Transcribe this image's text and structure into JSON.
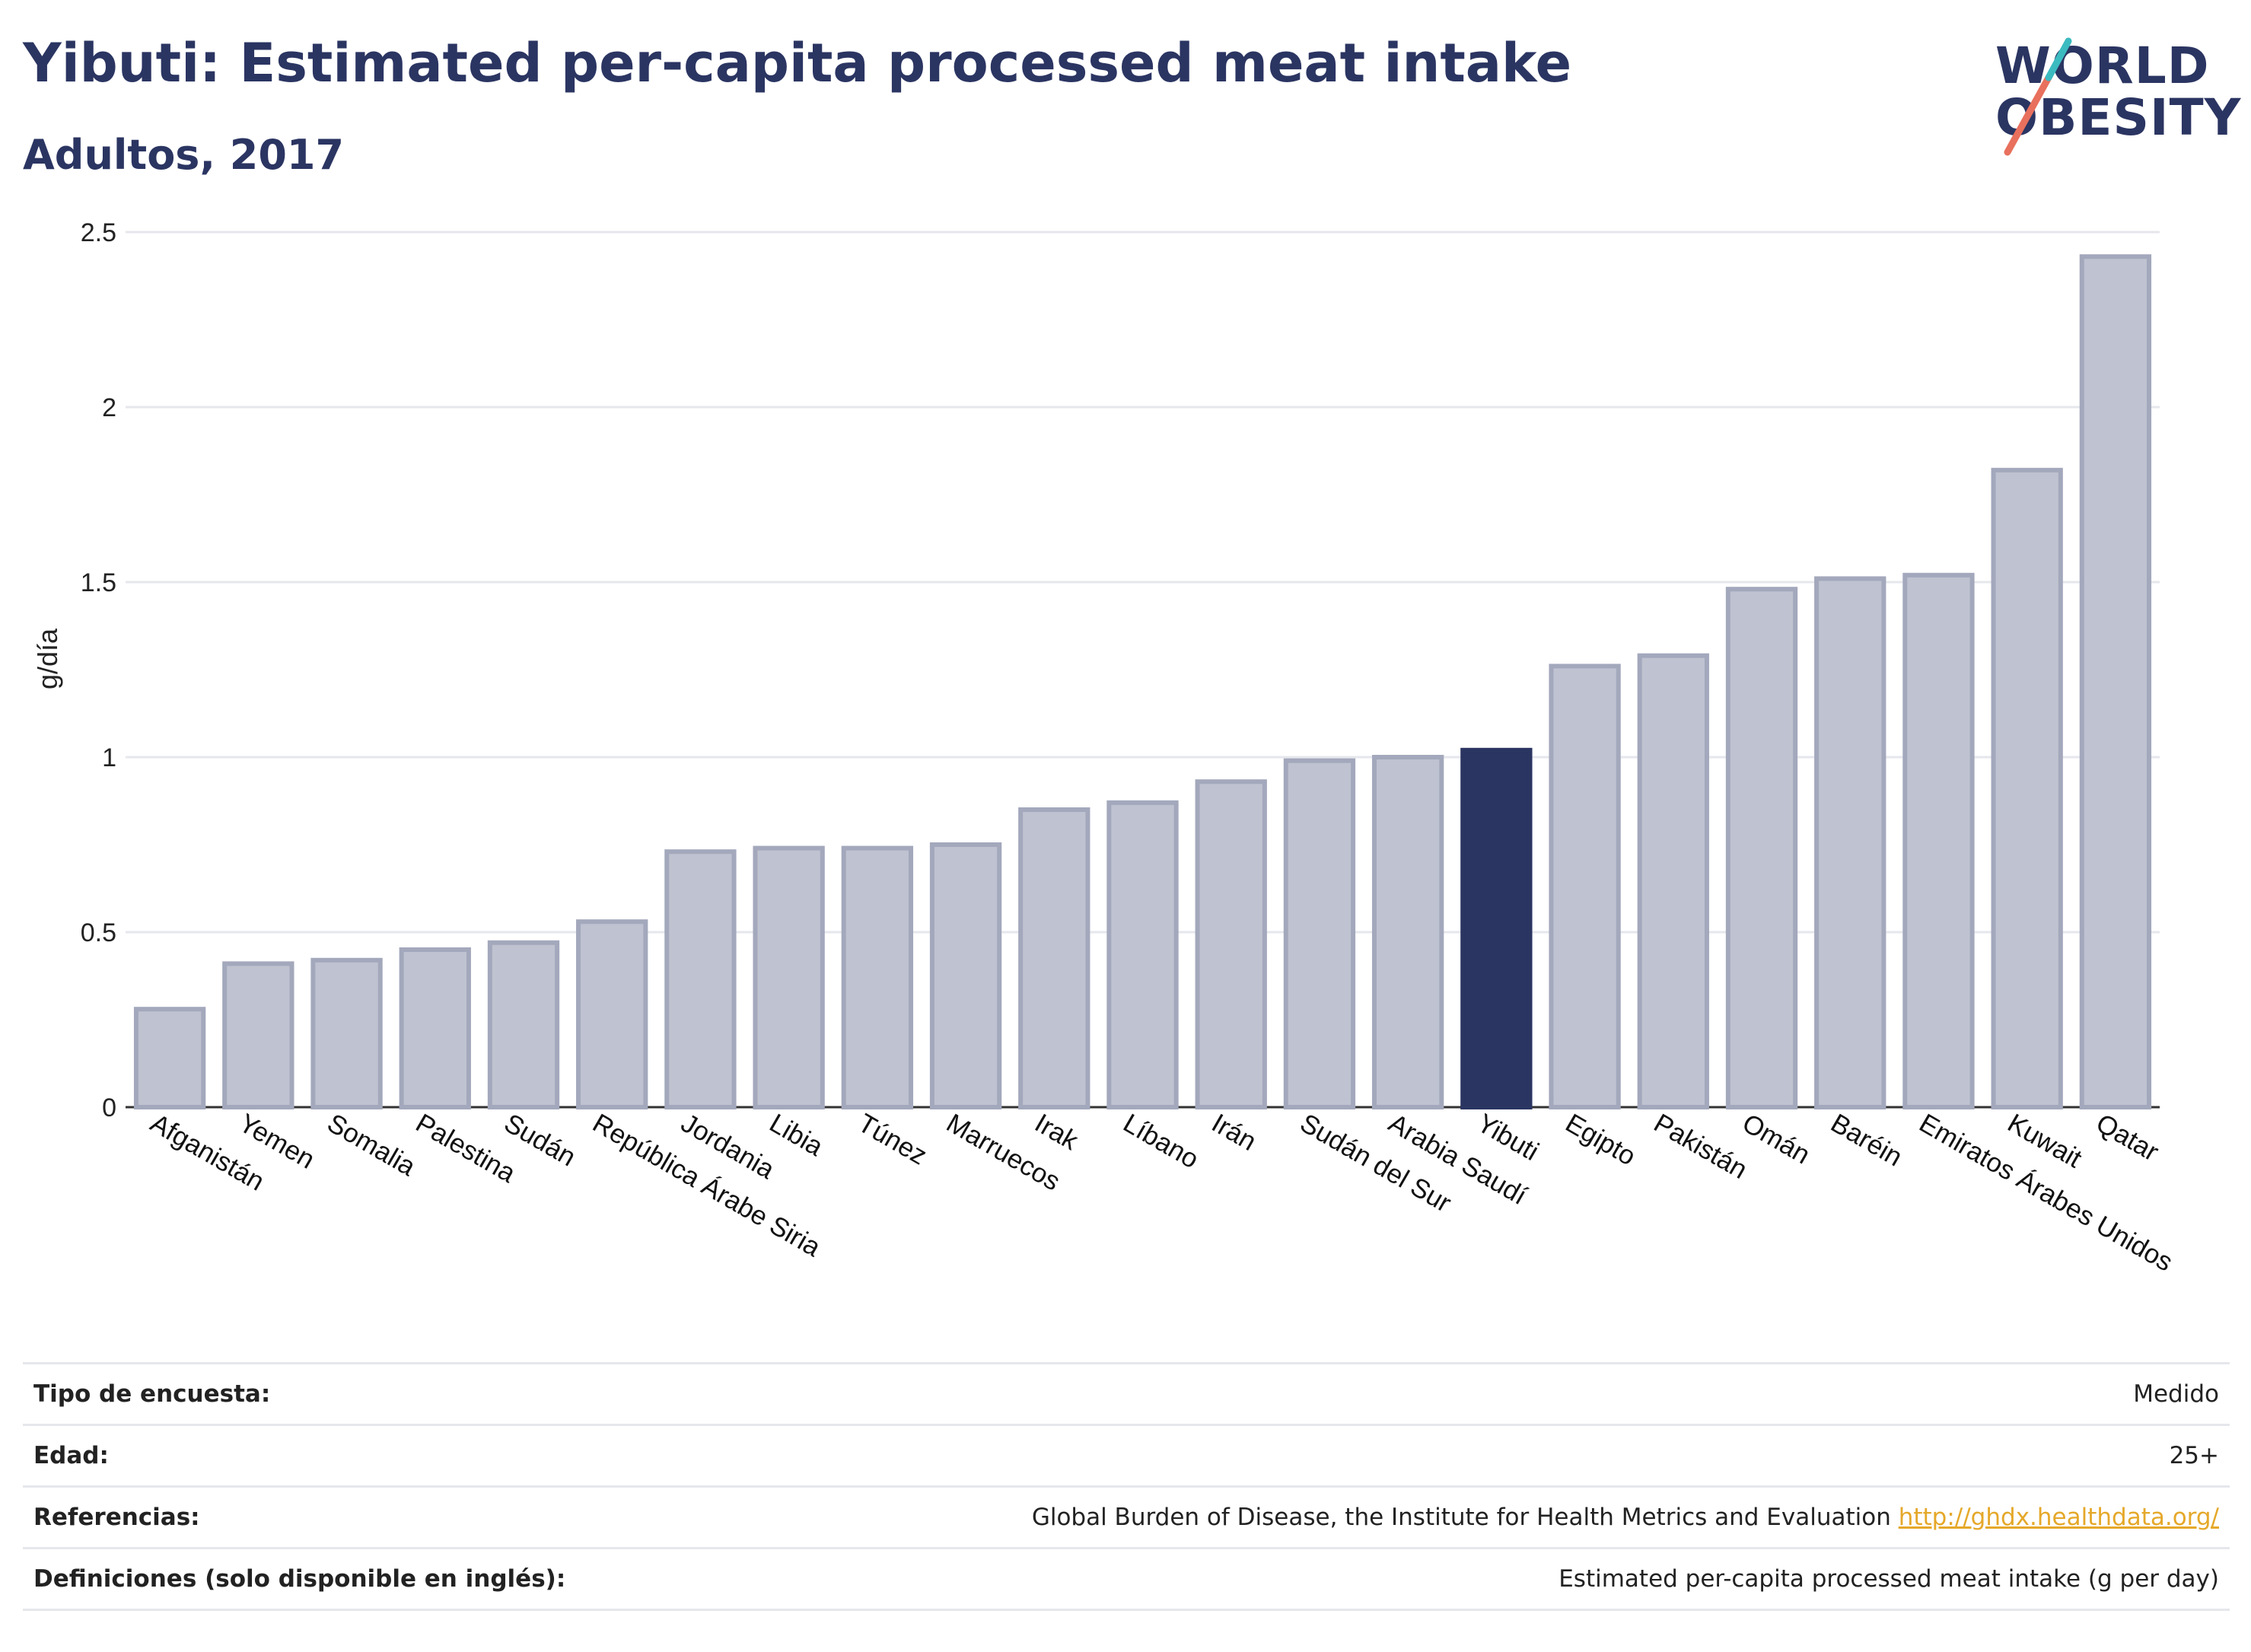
{
  "header": {
    "title": "Yibuti: Estimated per-capita processed meat intake",
    "subtitle": "Adultos, 2017"
  },
  "logo": {
    "line1": "WORLD",
    "line2": "OBESITY",
    "colors": {
      "text": "#2b3562",
      "slash_red": "#e8705d",
      "slash_teal": "#3bbbc0"
    }
  },
  "chart_data": {
    "type": "bar",
    "ylabel": "g/día",
    "ylim": [
      0,
      2.5
    ],
    "yticks": [
      0,
      0.5,
      1,
      1.5,
      2,
      2.5
    ],
    "ytick_labels": [
      "0",
      "0.5",
      "1",
      "1.5",
      "2",
      "2.5"
    ],
    "grid": true,
    "highlight": "Yibuti",
    "colors": {
      "bar": "#bfc2d0",
      "bar_edge": "#a3a8bc",
      "highlight": "#2b3562"
    },
    "categories": [
      "Afganistán",
      "Yemen",
      "Somalia",
      "Palestina",
      "Sudán",
      "República Árabe Siria",
      "Jordania",
      "Libia",
      "Túnez",
      "Marruecos",
      "Irak",
      "Líbano",
      "Irán",
      "Sudán del Sur",
      "Arabia Saudí",
      "Yibuti",
      "Egipto",
      "Pakistán",
      "Omán",
      "Baréin",
      "Emiratos Árabes Unidos",
      "Kuwait",
      "Qatar"
    ],
    "values": [
      0.28,
      0.41,
      0.42,
      0.45,
      0.47,
      0.53,
      0.73,
      0.74,
      0.74,
      0.75,
      0.85,
      0.87,
      0.93,
      0.99,
      1.0,
      1.02,
      1.26,
      1.29,
      1.48,
      1.51,
      1.52,
      1.82,
      2.43
    ]
  },
  "info": [
    {
      "key": "Tipo de encuesta:",
      "value": "Medido"
    },
    {
      "key": "Edad:",
      "value": "25+"
    },
    {
      "key": "Referencias:",
      "value": "Global Burden of Disease, the Institute for Health Metrics and Evaluation ",
      "link": "http://ghdx.healthdata.org/"
    },
    {
      "key": "Definiciones (solo disponible en inglés):",
      "value": "Estimated per-capita processed meat intake (g per day)"
    }
  ]
}
